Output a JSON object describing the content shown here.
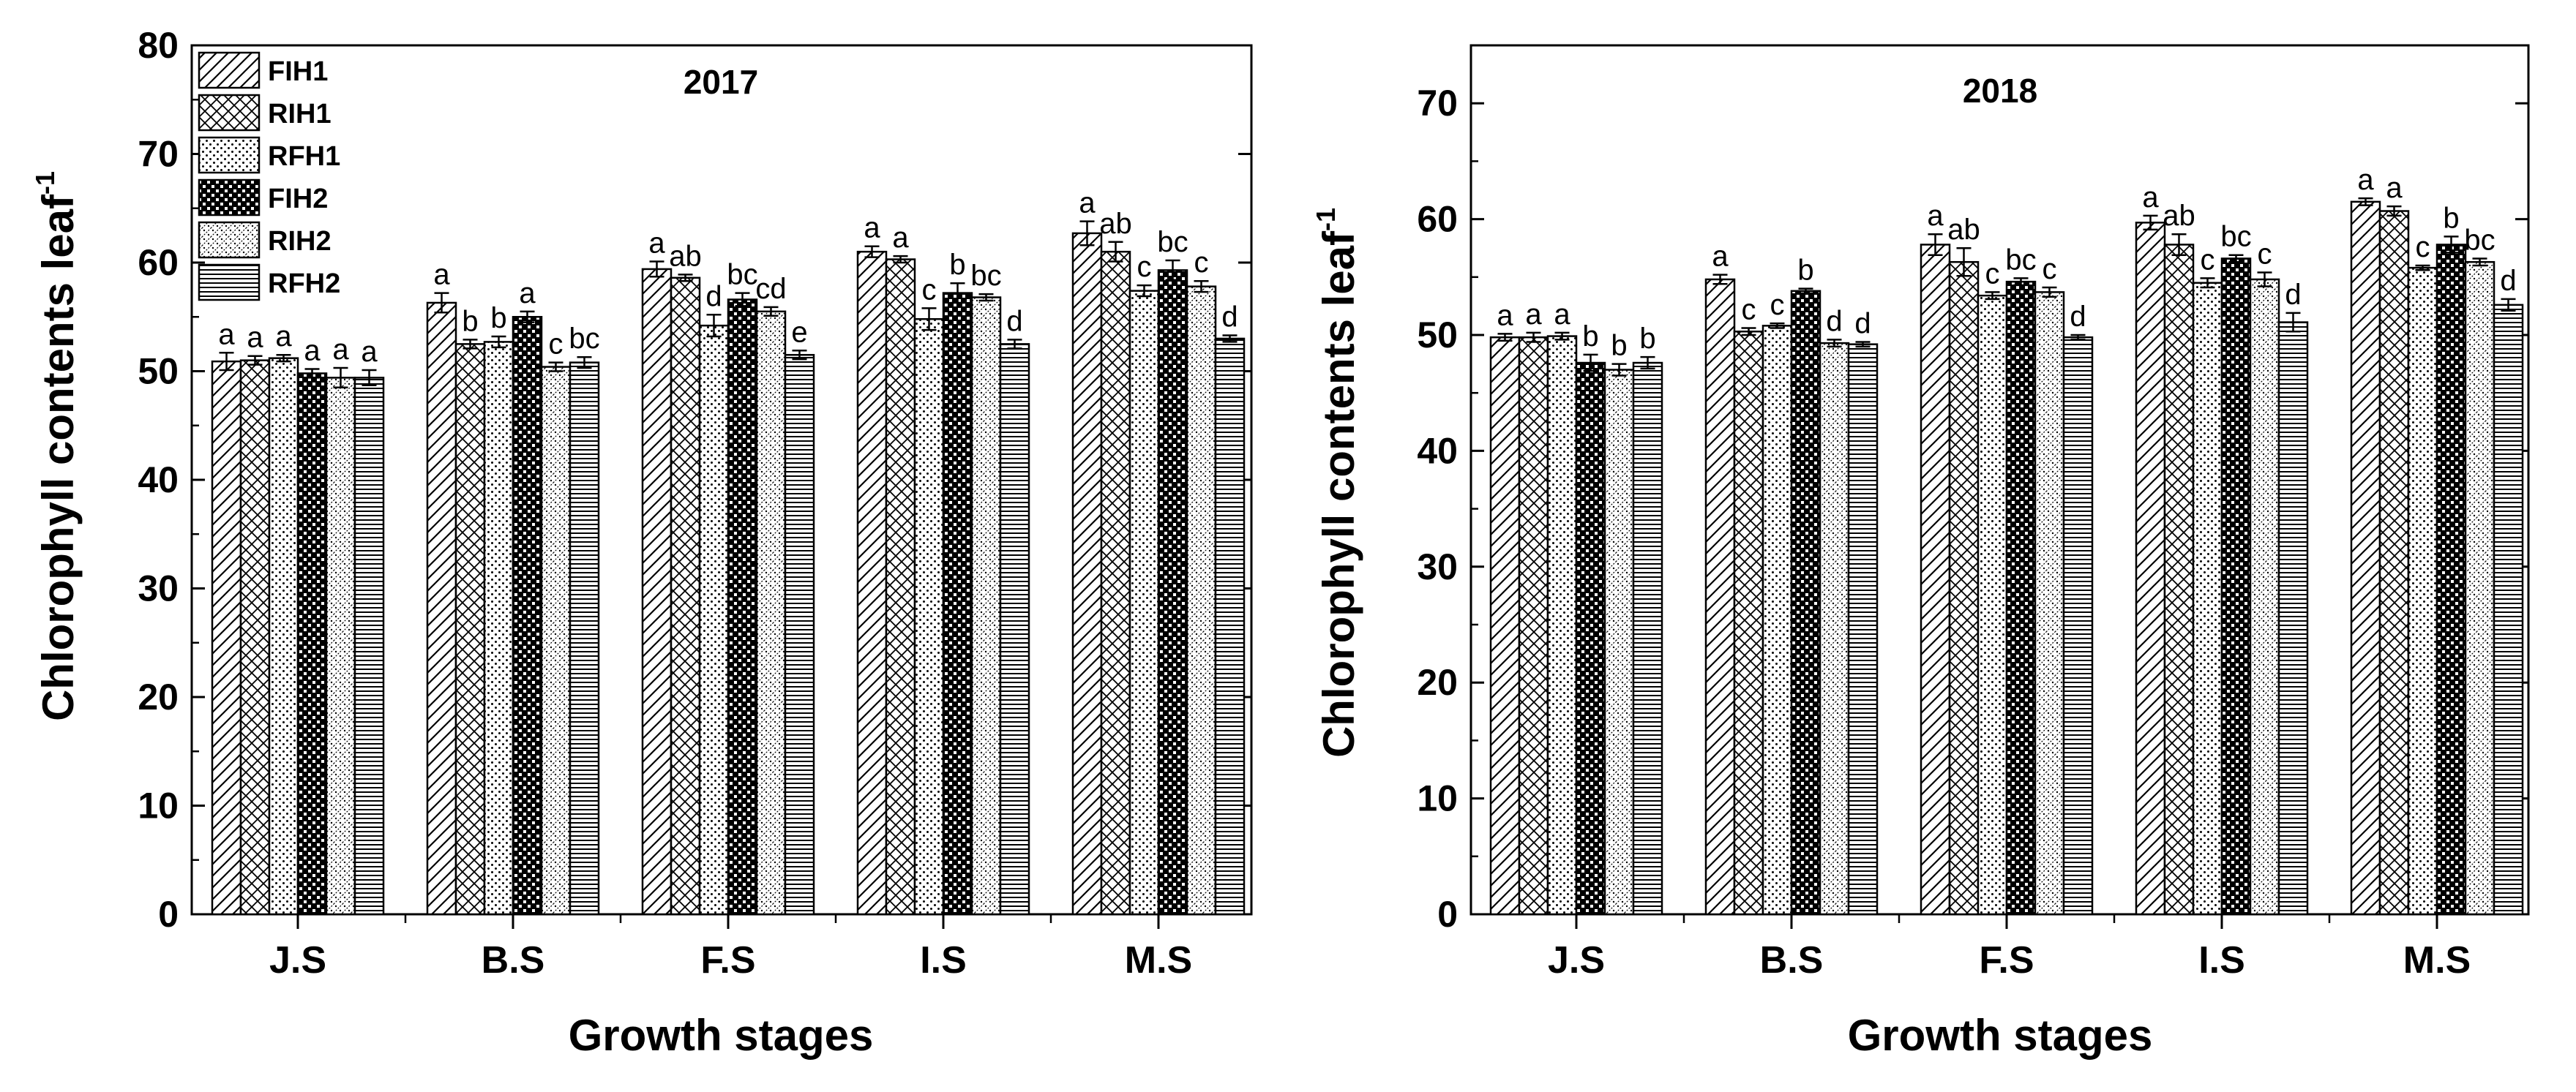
{
  "chart_data": [
    {
      "type": "bar",
      "title": "2017",
      "xlabel": "Growth stages",
      "ylabel": "Chlorophyll contents leaf",
      "ylabel_sup": "-1",
      "ylim": [
        0,
        80
      ],
      "yticks": [
        0,
        10,
        20,
        30,
        40,
        50,
        60,
        70,
        80
      ],
      "grid": false,
      "legend_position": "top-left",
      "categories": [
        "J.S",
        "B.S",
        "F.S",
        "I.S",
        "M.S"
      ],
      "series": [
        {
          "name": "FIH1",
          "pattern": "hatch-diag",
          "values": [
            50.9,
            56.3,
            59.4,
            61.0,
            62.7
          ],
          "errors": [
            0.8,
            0.9,
            0.7,
            0.5,
            1.1
          ],
          "letters": [
            "a",
            "a",
            "a",
            "a",
            "a"
          ]
        },
        {
          "name": "RIH1",
          "pattern": "crosshatch",
          "values": [
            51.0,
            52.5,
            58.6,
            60.3,
            61.0
          ],
          "errors": [
            0.4,
            0.4,
            0.3,
            0.3,
            0.9
          ],
          "letters": [
            "a",
            "b",
            "ab",
            "a",
            "ab"
          ]
        },
        {
          "name": "RFH1",
          "pattern": "dots",
          "values": [
            51.2,
            52.7,
            54.2,
            54.8,
            57.4
          ],
          "errors": [
            0.3,
            0.5,
            1.0,
            1.0,
            0.5
          ],
          "letters": [
            "a",
            "b",
            "d",
            "c",
            "c"
          ]
        },
        {
          "name": "FIH2",
          "pattern": "checker",
          "values": [
            49.8,
            55.0,
            56.6,
            57.2,
            59.3
          ],
          "errors": [
            0.4,
            0.5,
            0.6,
            0.9,
            0.9
          ],
          "letters": [
            "a",
            "a",
            "bc",
            "b",
            "bc"
          ]
        },
        {
          "name": "RIH2",
          "pattern": "fine-dots",
          "values": [
            49.4,
            50.4,
            55.5,
            56.8,
            57.8
          ],
          "errors": [
            0.9,
            0.4,
            0.4,
            0.3,
            0.5
          ],
          "letters": [
            "a",
            "c",
            "cd",
            "bc",
            "c"
          ]
        },
        {
          "name": "RFH2",
          "pattern": "horizontal",
          "values": [
            49.4,
            50.8,
            51.5,
            52.5,
            53.0
          ],
          "errors": [
            0.7,
            0.5,
            0.4,
            0.4,
            0.3
          ],
          "letters": [
            "a",
            "bc",
            "e",
            "d",
            "d"
          ]
        }
      ]
    },
    {
      "type": "bar",
      "title": "2018",
      "xlabel": "Growth stages",
      "ylabel": "Chlorophyll contents leaf",
      "ylabel_sup": "-1",
      "ylim": [
        0,
        75
      ],
      "yticks": [
        0,
        10,
        20,
        30,
        40,
        50,
        60,
        70
      ],
      "grid": false,
      "categories": [
        "J.S",
        "B.S",
        "F.S",
        "I.S",
        "M.S"
      ],
      "series": [
        {
          "name": "FIH1",
          "pattern": "hatch-diag",
          "values": [
            49.8,
            54.8,
            57.8,
            59.7,
            61.5
          ],
          "errors": [
            0.3,
            0.4,
            0.9,
            0.6,
            0.3
          ],
          "letters": [
            "a",
            "a",
            "a",
            "a",
            "a"
          ]
        },
        {
          "name": "RIH1",
          "pattern": "crosshatch",
          "values": [
            49.8,
            50.3,
            56.3,
            57.8,
            60.7
          ],
          "errors": [
            0.4,
            0.3,
            1.2,
            0.9,
            0.4
          ],
          "letters": [
            "a",
            "c",
            "ab",
            "ab",
            "a"
          ]
        },
        {
          "name": "RFH1",
          "pattern": "dots",
          "values": [
            49.9,
            50.8,
            53.4,
            54.5,
            55.8
          ],
          "errors": [
            0.3,
            0.2,
            0.3,
            0.4,
            0.2
          ],
          "letters": [
            "a",
            "c",
            "c",
            "c",
            "c"
          ]
        },
        {
          "name": "FIH2",
          "pattern": "checker",
          "values": [
            47.6,
            53.8,
            54.6,
            56.6,
            57.8
          ],
          "errors": [
            0.7,
            0.2,
            0.3,
            0.3,
            0.7
          ],
          "letters": [
            "b",
            "b",
            "bc",
            "bc",
            "b"
          ]
        },
        {
          "name": "RIH2",
          "pattern": "fine-dots",
          "values": [
            47.0,
            49.3,
            53.7,
            54.8,
            56.3
          ],
          "errors": [
            0.5,
            0.3,
            0.4,
            0.6,
            0.3
          ],
          "letters": [
            "b",
            "d",
            "c",
            "c",
            "bc"
          ]
        },
        {
          "name": "RFH2",
          "pattern": "horizontal",
          "values": [
            47.6,
            49.2,
            49.8,
            51.1,
            52.6
          ],
          "errors": [
            0.5,
            0.2,
            0.2,
            0.8,
            0.5
          ],
          "letters": [
            "b",
            "d",
            "d",
            "d",
            "d"
          ]
        }
      ]
    }
  ]
}
